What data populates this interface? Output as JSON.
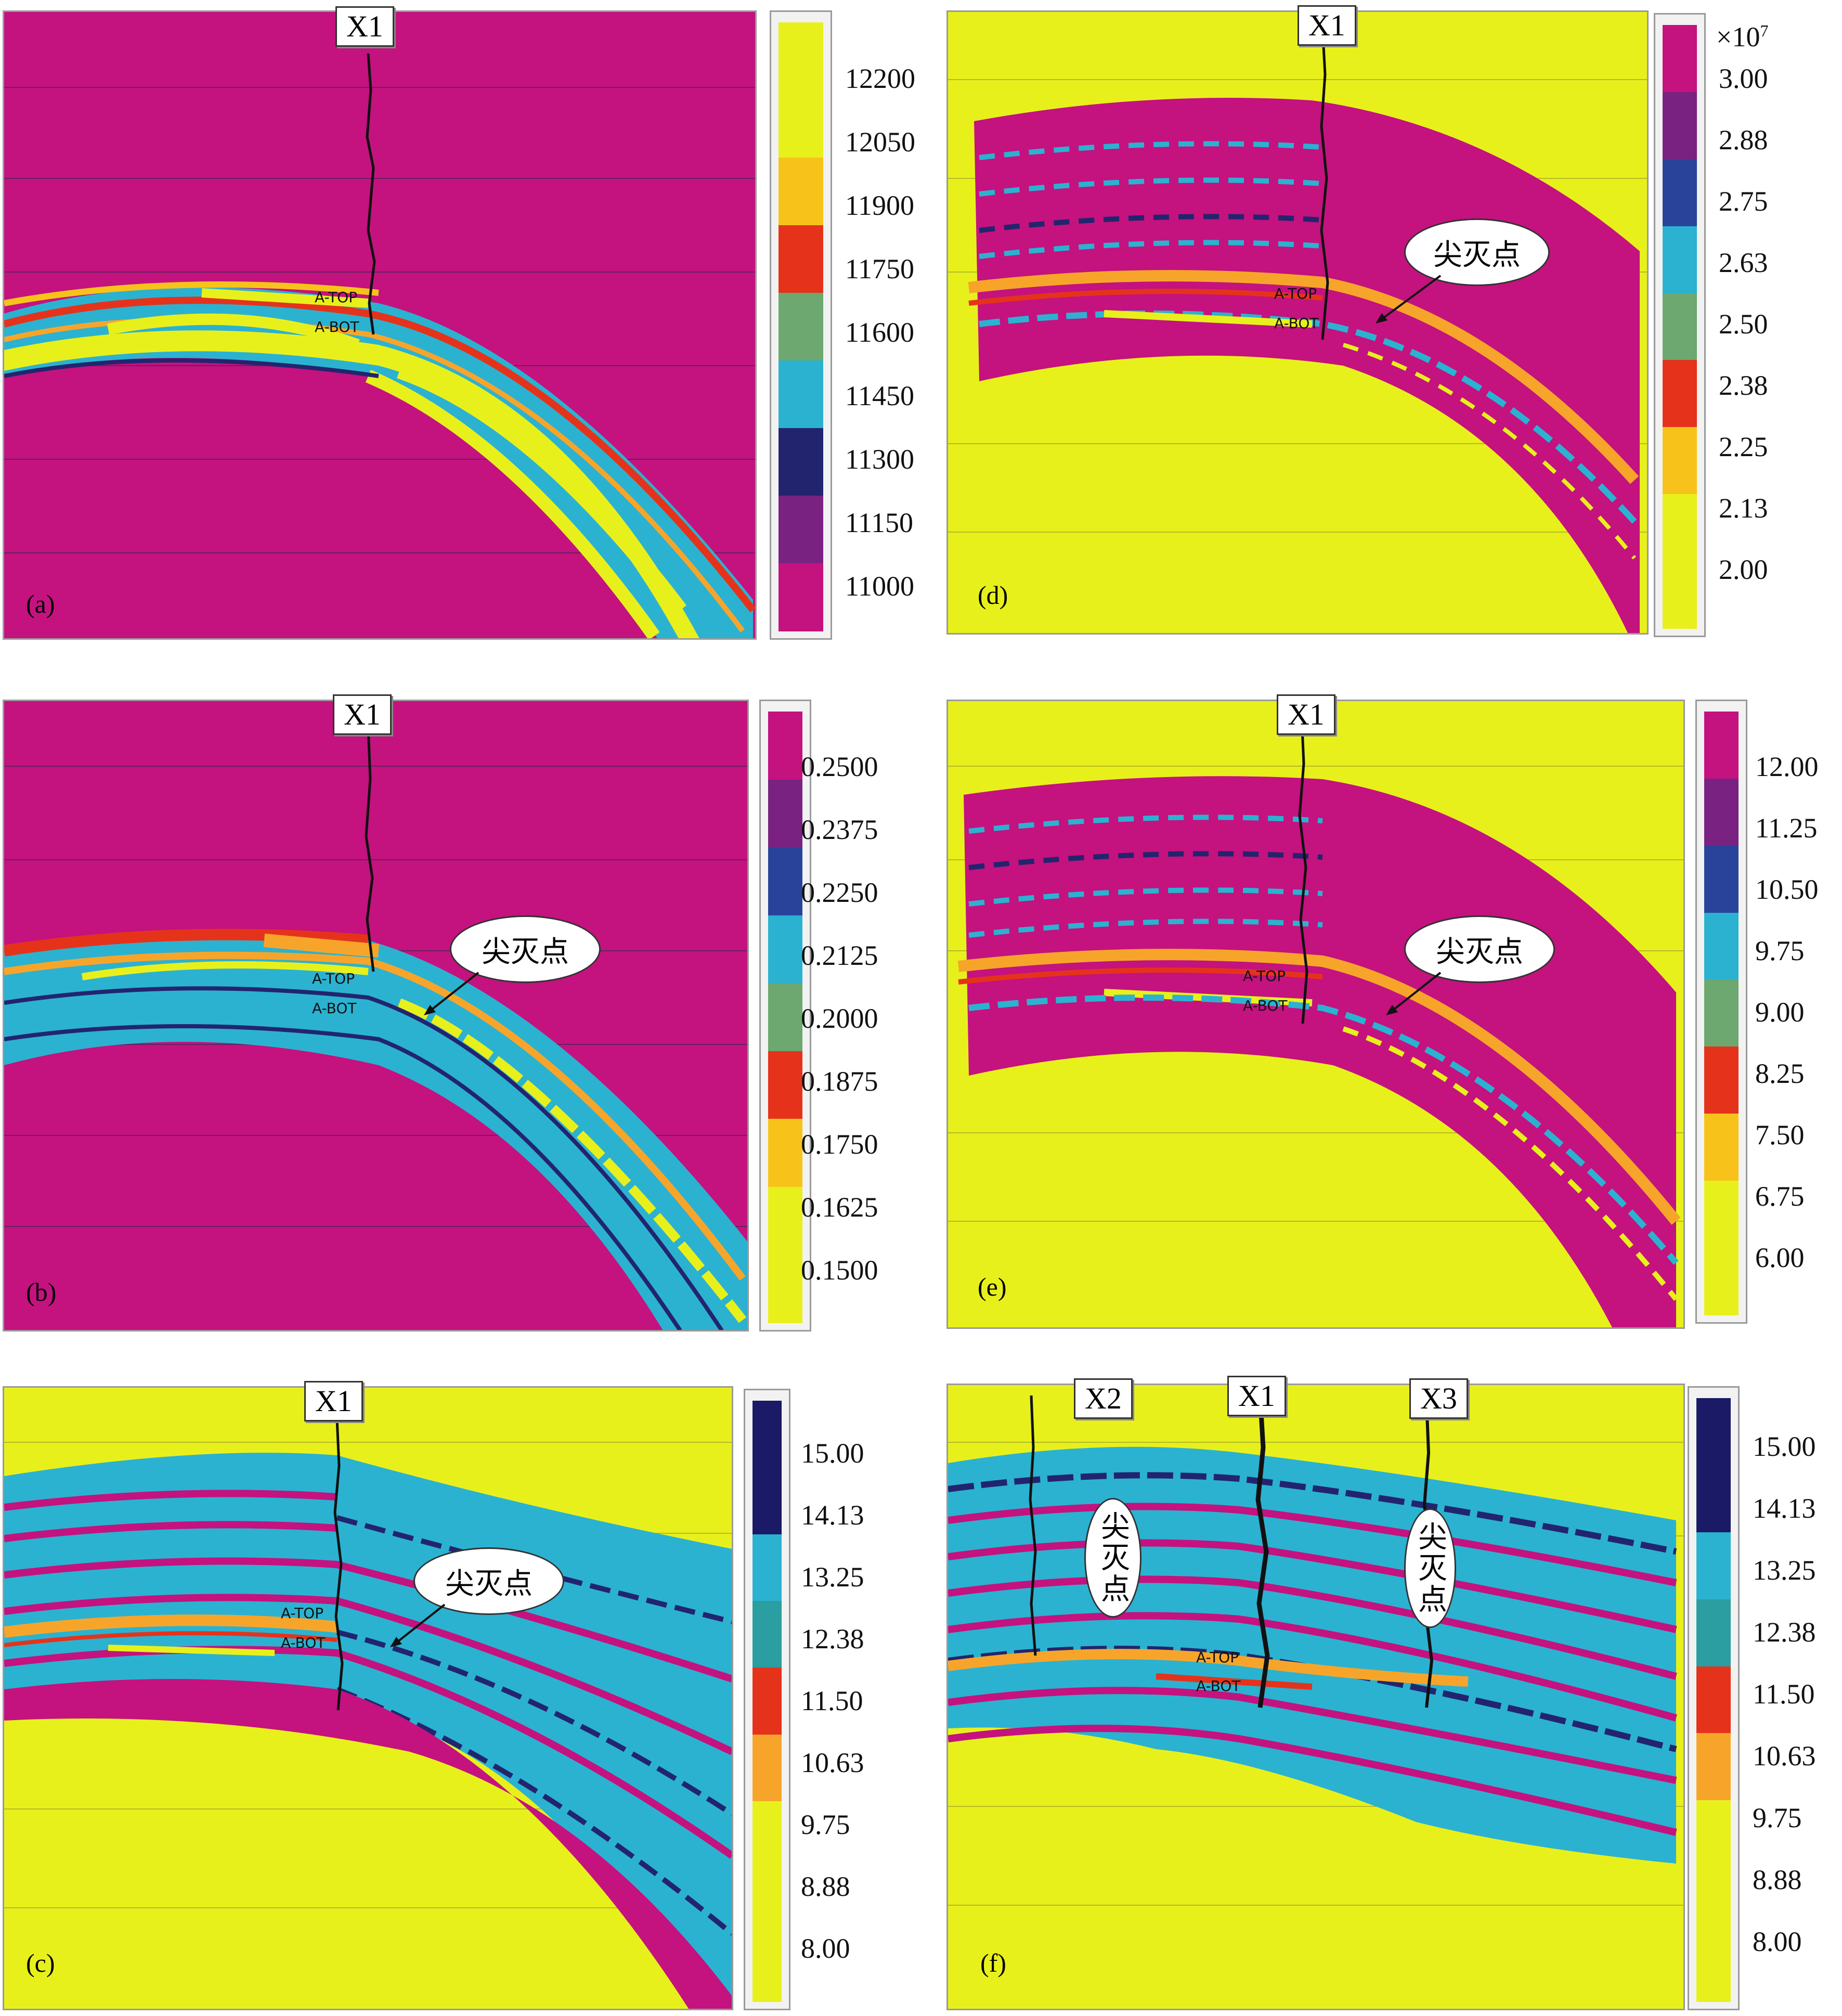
{
  "colors": {
    "magenta": "#c4127f",
    "yellow": "#e8f01c",
    "cyan": "#2bb2d1",
    "navy": "#22256e",
    "dark_navy": "#1b1a66",
    "orange": "#f7a52a",
    "red": "#e5331b",
    "green": "#6ca86f",
    "teal": "#2a9ea0",
    "purple": "#7a2281",
    "blue": "#29439b",
    "gold": "#f7c31a"
  },
  "panels": [
    {
      "id": "a",
      "label": "(a)",
      "background": "magenta",
      "wells": [
        "X1"
      ],
      "callouts": [],
      "markers": [
        "A-TOP",
        "A-BOT"
      ],
      "colorbar": {
        "exponent": "",
        "ticks": [
          "12200",
          "12050",
          "11900",
          "11750",
          "11600",
          "11450",
          "11300",
          "11150",
          "11000"
        ],
        "swatches": [
          "yellow",
          "yellow",
          "gold",
          "red",
          "green",
          "cyan",
          "navy",
          "purple",
          "magenta"
        ]
      }
    },
    {
      "id": "b",
      "label": "(b)",
      "background": "magenta",
      "wells": [
        "X1"
      ],
      "callouts": [
        "尖灭点"
      ],
      "markers": [
        "A-TOP",
        "A-BOT"
      ],
      "colorbar": {
        "exponent": "",
        "ticks": [
          "0.2500",
          "0.2375",
          "0.2250",
          "0.2125",
          "0.2000",
          "0.1875",
          "0.1750",
          "0.1625",
          "0.1500"
        ],
        "swatches": [
          "magenta",
          "purple",
          "blue",
          "cyan",
          "green",
          "red",
          "gold",
          "yellow",
          "yellow"
        ]
      }
    },
    {
      "id": "c",
      "label": "(c)",
      "background": "yellow",
      "wells": [
        "X1"
      ],
      "callouts": [
        "尖灭点"
      ],
      "markers": [
        "A-TOP",
        "A-BOT"
      ],
      "colorbar": {
        "exponent": "",
        "ticks": [
          "15.00",
          "14.13",
          "13.25",
          "12.38",
          "11.50",
          "10.63",
          "9.75",
          "8.88",
          "8.00"
        ],
        "swatches": [
          "dark_navy",
          "dark_navy",
          "cyan",
          "teal",
          "red",
          "orange",
          "yellow",
          "yellow",
          "yellow"
        ]
      }
    },
    {
      "id": "d",
      "label": "(d)",
      "background": "yellow",
      "wells": [
        "X1"
      ],
      "callouts": [
        "尖灭点"
      ],
      "markers": [
        "A-TOP",
        "A-BOT"
      ],
      "colorbar": {
        "exponent": "×10",
        "exponent_power": "7",
        "ticks": [
          "3.00",
          "2.88",
          "2.75",
          "2.63",
          "2.50",
          "2.38",
          "2.25",
          "2.13",
          "2.00"
        ],
        "swatches": [
          "magenta",
          "purple",
          "blue",
          "cyan",
          "green",
          "red",
          "gold",
          "yellow",
          "yellow"
        ]
      }
    },
    {
      "id": "e",
      "label": "(e)",
      "background": "yellow",
      "wells": [
        "X1"
      ],
      "callouts": [
        "尖灭点"
      ],
      "markers": [
        "A-TOP",
        "A-BOT"
      ],
      "colorbar": {
        "exponent": "",
        "ticks": [
          "12.00",
          "11.25",
          "10.50",
          "9.75",
          "9.00",
          "8.25",
          "7.50",
          "6.75",
          "6.00"
        ],
        "swatches": [
          "magenta",
          "purple",
          "blue",
          "cyan",
          "green",
          "red",
          "gold",
          "yellow",
          "yellow"
        ]
      }
    },
    {
      "id": "f",
      "label": "(f)",
      "background": "yellow",
      "wells": [
        "X2",
        "X1",
        "X3"
      ],
      "callouts": [
        "尖灭点",
        "尖灭点"
      ],
      "markers": [
        "A-TOP",
        "A-BOT"
      ],
      "colorbar": {
        "exponent": "",
        "ticks": [
          "15.00",
          "14.13",
          "13.25",
          "12.38",
          "11.50",
          "10.63",
          "9.75",
          "8.88",
          "8.00"
        ],
        "swatches": [
          "dark_navy",
          "dark_navy",
          "cyan",
          "teal",
          "red",
          "orange",
          "yellow",
          "yellow",
          "yellow"
        ]
      }
    }
  ]
}
